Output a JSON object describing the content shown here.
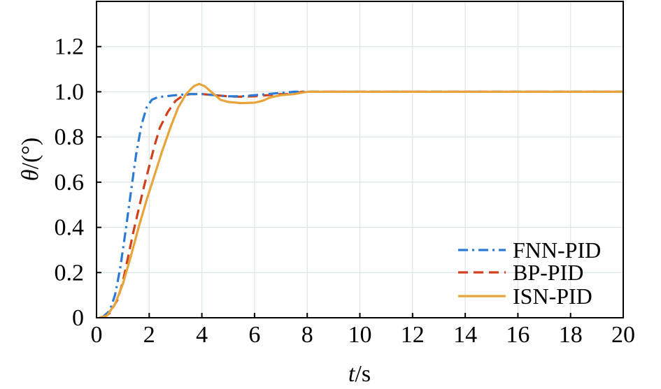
{
  "chart_data": {
    "type": "line",
    "title": "",
    "xlabel": {
      "var": "t",
      "unit": "/s"
    },
    "ylabel": {
      "var": "θ",
      "unit": "/(°)"
    },
    "xlim": [
      0,
      20
    ],
    "ylim": [
      0,
      1.4
    ],
    "xticks": [
      "0",
      "2",
      "4",
      "6",
      "8",
      "10",
      "12",
      "14",
      "16",
      "18",
      "20"
    ],
    "yticks": [
      "0",
      "0.2",
      "0.4",
      "0.6",
      "0.8",
      "1.0",
      "1.2"
    ],
    "grid": true,
    "legend_position": "bottom-right",
    "series": [
      {
        "name": "FNN-PID",
        "color": "#2b7bd6",
        "dash": "dash-dot",
        "points": [
          [
            0.2,
            0
          ],
          [
            0.5,
            0.03
          ],
          [
            0.7,
            0.1
          ],
          [
            0.9,
            0.22
          ],
          [
            1.1,
            0.38
          ],
          [
            1.3,
            0.55
          ],
          [
            1.5,
            0.72
          ],
          [
            1.7,
            0.85
          ],
          [
            1.9,
            0.93
          ],
          [
            2.1,
            0.965
          ],
          [
            2.3,
            0.975
          ],
          [
            2.6,
            0.98
          ],
          [
            3.0,
            0.985
          ],
          [
            3.5,
            0.99
          ],
          [
            4.0,
            0.99
          ],
          [
            4.5,
            0.985
          ],
          [
            5.0,
            0.98
          ],
          [
            5.5,
            0.98
          ],
          [
            6.0,
            0.985
          ],
          [
            6.5,
            0.99
          ],
          [
            7.0,
            0.995
          ],
          [
            7.5,
            1.0
          ],
          [
            8,
            1.0
          ],
          [
            20,
            1.0
          ]
        ]
      },
      {
        "name": "BP-PID",
        "color": "#d1401b",
        "dash": "dashed",
        "points": [
          [
            0.2,
            0
          ],
          [
            0.5,
            0.02
          ],
          [
            0.8,
            0.08
          ],
          [
            1.0,
            0.16
          ],
          [
            1.2,
            0.27
          ],
          [
            1.4,
            0.38
          ],
          [
            1.6,
            0.48
          ],
          [
            1.8,
            0.58
          ],
          [
            2.0,
            0.67
          ],
          [
            2.2,
            0.76
          ],
          [
            2.4,
            0.84
          ],
          [
            2.7,
            0.91
          ],
          [
            3.0,
            0.96
          ],
          [
            3.3,
            0.985
          ],
          [
            3.6,
            0.99
          ],
          [
            4.0,
            0.99
          ],
          [
            4.5,
            0.985
          ],
          [
            5.0,
            0.98
          ],
          [
            5.5,
            0.978
          ],
          [
            6.0,
            0.98
          ],
          [
            6.5,
            0.985
          ],
          [
            7.0,
            0.99
          ],
          [
            7.4,
            0.99
          ],
          [
            7.8,
            1.0
          ],
          [
            8.2,
            1.0
          ],
          [
            20,
            1.0
          ]
        ]
      },
      {
        "name": "ISN-PID",
        "color": "#e8a43a",
        "dash": "solid",
        "points": [
          [
            0.1,
            0
          ],
          [
            0.4,
            0.01
          ],
          [
            0.7,
            0.06
          ],
          [
            1.0,
            0.15
          ],
          [
            1.3,
            0.27
          ],
          [
            1.6,
            0.4
          ],
          [
            1.9,
            0.52
          ],
          [
            2.2,
            0.63
          ],
          [
            2.5,
            0.74
          ],
          [
            2.8,
            0.84
          ],
          [
            3.1,
            0.93
          ],
          [
            3.4,
            0.99
          ],
          [
            3.7,
            1.025
          ],
          [
            3.9,
            1.035
          ],
          [
            4.1,
            1.025
          ],
          [
            4.4,
            0.995
          ],
          [
            4.7,
            0.965
          ],
          [
            5.0,
            0.955
          ],
          [
            5.5,
            0.95
          ],
          [
            6.0,
            0.952
          ],
          [
            6.3,
            0.96
          ],
          [
            6.6,
            0.975
          ],
          [
            7.0,
            0.985
          ],
          [
            7.5,
            0.99
          ],
          [
            8.0,
            1.0
          ],
          [
            20,
            1.0
          ]
        ]
      }
    ]
  }
}
